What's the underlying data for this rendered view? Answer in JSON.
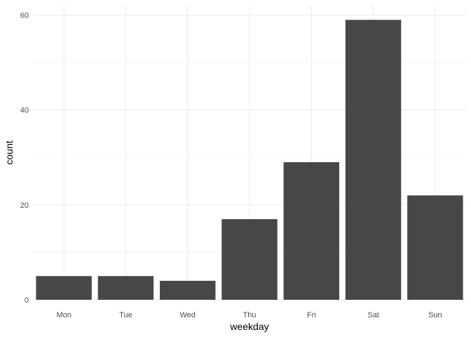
{
  "chart_data": {
    "type": "bar",
    "title": "",
    "xlabel": "weekday",
    "ylabel": "count",
    "categories": [
      "Mon",
      "Tue",
      "Wed",
      "Thu",
      "Fri",
      "Sat",
      "Sun"
    ],
    "values": [
      5,
      5,
      4,
      17,
      29,
      59,
      22
    ],
    "ylim": [
      0,
      62
    ],
    "yticks": [
      0,
      20,
      40,
      60
    ],
    "ytick_labels": [
      "0",
      "20",
      "40",
      "60"
    ],
    "grid": true,
    "legend": "none",
    "bar_color": "#474747",
    "grid_color": "#ebebeb",
    "background": "#ffffff"
  }
}
